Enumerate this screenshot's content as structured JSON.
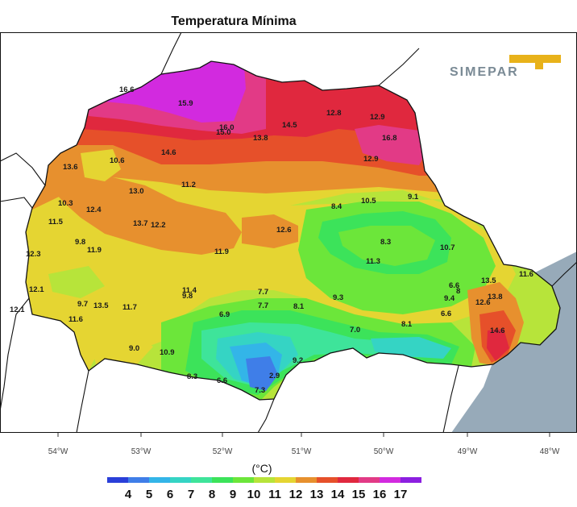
{
  "title": "Temperatura Mínima",
  "logo_text": "SIMEPAR",
  "unit_label": "(°C)",
  "x_axis_ticks": [
    "54°W",
    "53°W",
    "52°W",
    "51°W",
    "50°W",
    "49°W",
    "48°W"
  ],
  "colorbar": {
    "labels": [
      "4",
      "5",
      "6",
      "7",
      "8",
      "9",
      "10",
      "11",
      "12",
      "13",
      "14",
      "15",
      "16",
      "17"
    ],
    "colors": [
      "#2a3fd9",
      "#3f7ee8",
      "#33b5e8",
      "#35d4c4",
      "#3ee49a",
      "#3ce35a",
      "#6ce63a",
      "#b7e43a",
      "#e5d532",
      "#e7902e",
      "#e6502a",
      "#e0283e",
      "#e23a86",
      "#d22adf",
      "#8c1fe0"
    ]
  },
  "station_values": [
    "16.6",
    "15.9",
    "16.0",
    "15.0",
    "14.5",
    "13.8",
    "12.8",
    "12.9",
    "16.8",
    "12.9",
    "13.6",
    "10.6",
    "14.6",
    "11.2",
    "13.0",
    "10.3",
    "12.4",
    "11.5",
    "13.7",
    "12.2",
    "12.6",
    "10.5",
    "9.1",
    "8.4",
    "9.8",
    "11.9",
    "11.9",
    "8.3",
    "10.7",
    "12.3",
    "11.3",
    "13.5",
    "11.6",
    "12.1",
    "11.4",
    "9.8",
    "7.7",
    "6.6",
    "9.4",
    "8",
    "9.7",
    "13.5",
    "11.7",
    "7.7",
    "8.1",
    "9.3",
    "12.6",
    "13.8",
    "12.1",
    "11.6",
    "6.9",
    "7.0",
    "8.1",
    "6.6",
    "14.6",
    "9.0",
    "10.9",
    "9.2",
    "8.3",
    "6.6",
    "2.9",
    "7.3"
  ],
  "colors": {
    "ocean": "#97aab9",
    "land_outside": "#ffffff",
    "border": "#111111"
  }
}
